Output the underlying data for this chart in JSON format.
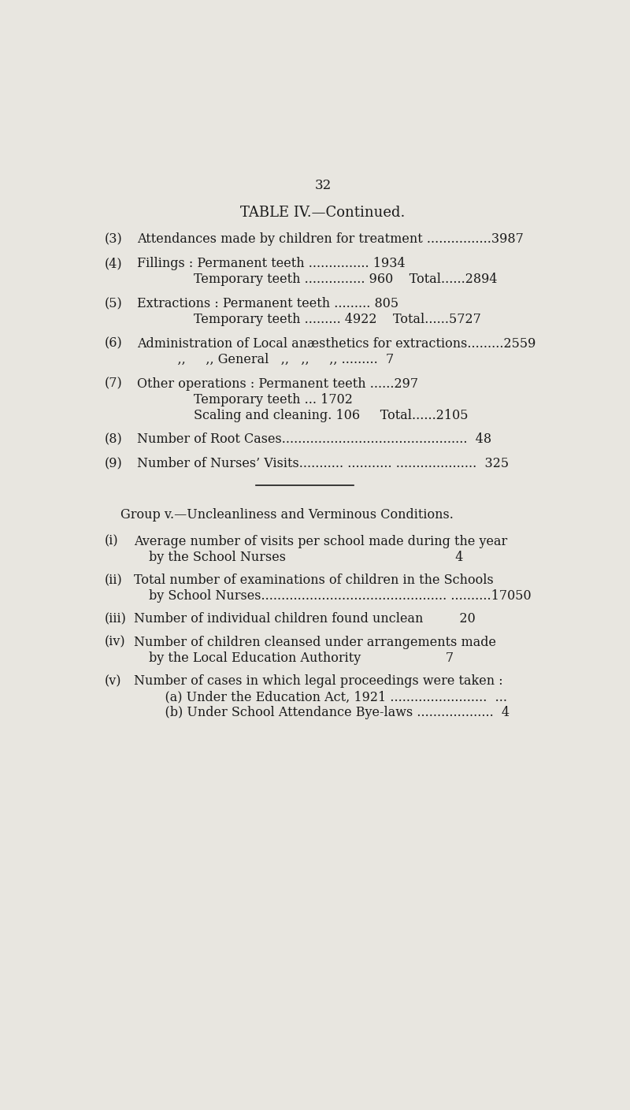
{
  "page_number": "32",
  "title": "TABLE IV.—Continued.",
  "bg_color": "#e8e6e0",
  "text_color": "#1a1a1a",
  "figsize": [
    8.0,
    14.09
  ],
  "dpi": 100,
  "sections": [
    {
      "num": "(3)",
      "lines": [
        {
          "col1": "Attendances made by children for treatment ................3987",
          "col2": ""
        }
      ]
    },
    {
      "num": "(4)",
      "lines": [
        {
          "col1": "Fillings : Permanent teeth ............... 1934",
          "col2": ""
        },
        {
          "col1": "        Temporary teeth ............... 960    Total......2894",
          "col2": ""
        }
      ]
    },
    {
      "num": "(5)",
      "lines": [
        {
          "col1": "Extractions : Permanent teeth ......... 805",
          "col2": ""
        },
        {
          "col1": "        Temporary teeth ......... 4922    Total......5727",
          "col2": ""
        }
      ]
    },
    {
      "num": "(6)",
      "lines": [
        {
          "col1": "Administration of Local anæsthetics for extractions.........2559",
          "col2": ""
        },
        {
          "col1": "    ,,     ,, General   ,,   ,,     ,, .........  7",
          "col2": ""
        }
      ]
    },
    {
      "num": "(7)",
      "lines": [
        {
          "col1": "Other operations : Permanent teeth ......297",
          "col2": ""
        },
        {
          "col1": "        Temporary teeth ... 1702",
          "col2": ""
        },
        {
          "col1": "        Scaling and cleaning. 106     Total......2105",
          "col2": ""
        }
      ]
    },
    {
      "num": "(8)",
      "lines": [
        {
          "col1": "Number of Root Cases..............................................  48",
          "col2": ""
        }
      ]
    },
    {
      "num": "(9)",
      "lines": [
        {
          "col1": "Number of Nurses’ Visits........... ........... ....................  325",
          "col2": ""
        }
      ]
    }
  ],
  "group_title": "Group v.—Uncleanliness and Verminous Conditions.",
  "group_items": [
    {
      "num": "(i)",
      "lines": [
        "Average number of visits per school made during the year",
        "by the School Nurses                                          4"
      ]
    },
    {
      "num": "(ii)",
      "lines": [
        "Total number of examinations of children in the Schools",
        "by School Nurses.............................................. ..........17050"
      ]
    },
    {
      "num": "(iii)",
      "lines": [
        "Number of individual children found unclean         20"
      ]
    },
    {
      "num": "(iv)",
      "lines": [
        "Number of children cleansed under arrangements made",
        "by the Local Education Authority                     7"
      ]
    },
    {
      "num": "(v)",
      "lines": [
        "Number of cases in which legal proceedings were taken :",
        "    (a) Under the Education Act, 1921 ........................  ...",
        "    (b) Under School Attendance Bye-laws ...................  4"
      ]
    }
  ]
}
